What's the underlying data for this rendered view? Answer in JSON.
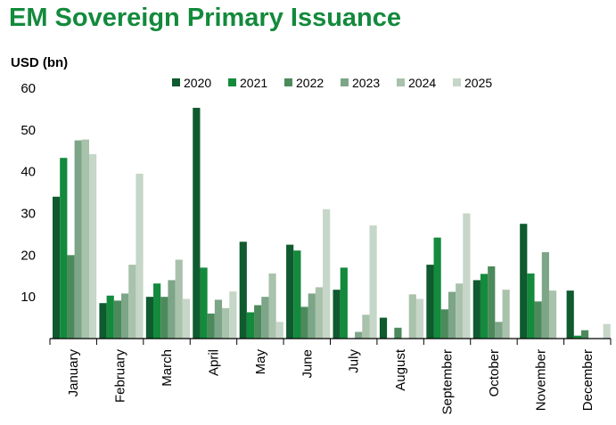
{
  "title": "EM Sovereign Primary Issuance",
  "chart_data": {
    "type": "bar",
    "title": "EM Sovereign Primary Issuance",
    "ylabel": "USD (bn)",
    "xlabel": "",
    "ylim": [
      0,
      60
    ],
    "yticks": [
      10,
      20,
      30,
      40,
      50,
      60
    ],
    "legend_position": "top",
    "grid": false,
    "categories": [
      "January",
      "February",
      "March",
      "April",
      "May",
      "June",
      "July",
      "August",
      "September",
      "October",
      "November",
      "December"
    ],
    "series": [
      {
        "name": "2020",
        "color": "#0f5a2e",
        "values": [
          34,
          8.5,
          10,
          55.3,
          23.2,
          22.5,
          11.7,
          5,
          17.7,
          14,
          27.5,
          11.5
        ]
      },
      {
        "name": "2021",
        "color": "#138a3c",
        "values": [
          43.3,
          10.3,
          13.2,
          17,
          6.3,
          21.1,
          17,
          0,
          24.2,
          15.5,
          15.6,
          0.7
        ]
      },
      {
        "name": "2022",
        "color": "#4c8a5c",
        "values": [
          20,
          9.1,
          10,
          6,
          8,
          7.6,
          0,
          2.6,
          7,
          17.3,
          8.9,
          2
        ]
      },
      {
        "name": "2023",
        "color": "#7da588",
        "values": [
          47.5,
          10.8,
          14,
          9.3,
          10,
          10.8,
          1.6,
          0,
          11.2,
          4,
          20.7,
          0
        ]
      },
      {
        "name": "2024",
        "color": "#a9c2ab",
        "values": [
          47.7,
          17.7,
          18.9,
          7.3,
          15.6,
          12.3,
          5.7,
          10.6,
          13.2,
          11.7,
          11.5,
          0
        ]
      },
      {
        "name": "2025",
        "color": "#c6d6c8",
        "values": [
          44.2,
          39.5,
          9.5,
          11.3,
          4,
          31,
          27.1,
          9.5,
          30,
          0,
          0,
          3.5
        ]
      }
    ]
  }
}
